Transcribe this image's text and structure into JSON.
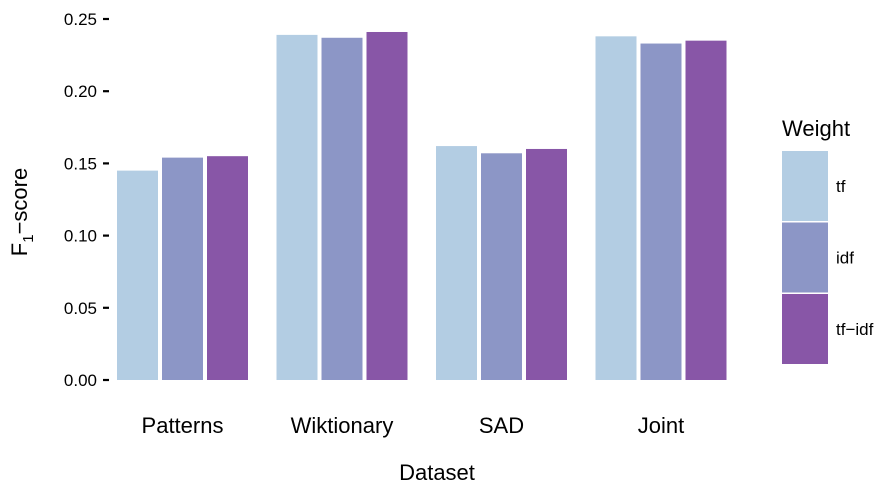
{
  "chart_data": {
    "type": "bar",
    "categories": [
      "Patterns",
      "Wiktionary",
      "SAD",
      "Joint"
    ],
    "series": [
      {
        "name": "tf",
        "color": "#b3cde3",
        "values": [
          0.145,
          0.239,
          0.162,
          0.238
        ]
      },
      {
        "name": "idf",
        "color": "#8c96c6",
        "values": [
          0.154,
          0.237,
          0.157,
          0.233
        ]
      },
      {
        "name": "tf−idf",
        "color": "#8856a7",
        "values": [
          0.155,
          0.241,
          0.16,
          0.235
        ]
      }
    ],
    "yticks": [
      "0.00",
      "0.05",
      "0.10",
      "0.15",
      "0.20",
      "0.25"
    ],
    "ytick_values": [
      0,
      0.05,
      0.1,
      0.15,
      0.2,
      0.25
    ],
    "ylim": [
      0,
      0.25
    ],
    "xlabel": "Dataset",
    "ylabel_main": "F",
    "ylabel_sub": "1",
    "ylabel_rest": "−score",
    "legend_title": "Weight",
    "legend_position": "right",
    "grid": false
  }
}
